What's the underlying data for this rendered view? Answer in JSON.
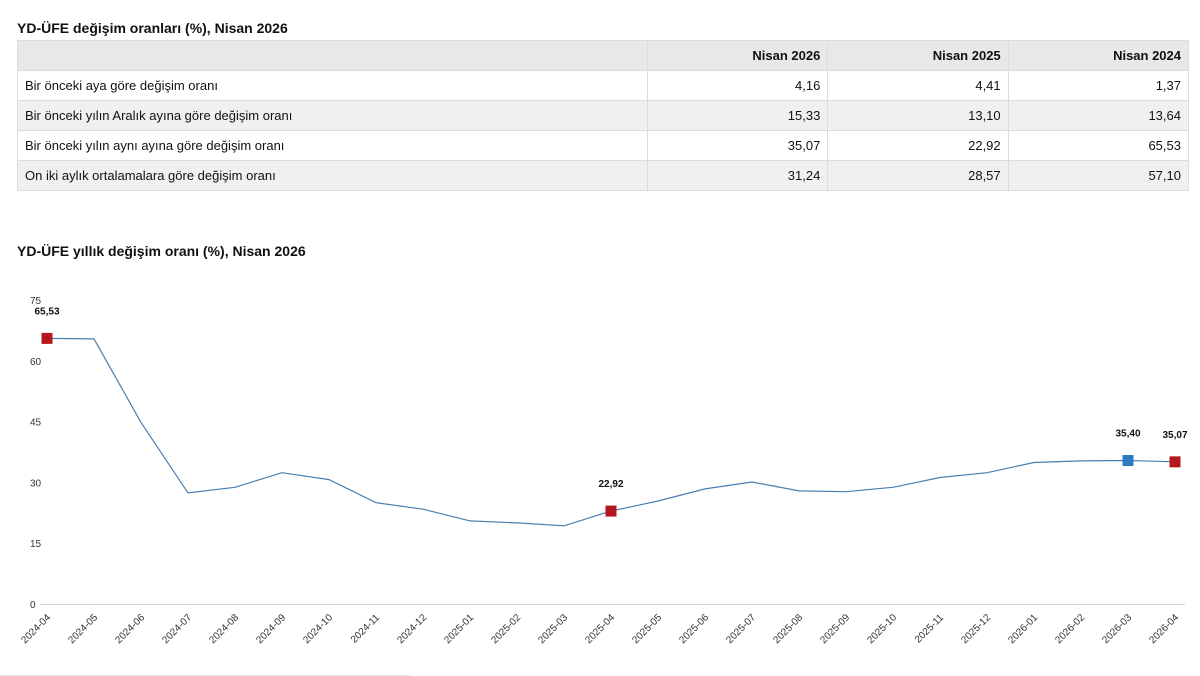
{
  "table": {
    "title": "YD-ÜFE değişim oranları (%), Nisan 2026",
    "columns": [
      "",
      "Nisan 2026",
      "Nisan 2025",
      "Nisan 2024"
    ],
    "rows": [
      {
        "label": "Bir önceki aya göre değişim oranı",
        "values": [
          "4,16",
          "4,41",
          "1,37"
        ]
      },
      {
        "label": "Bir önceki yılın Aralık ayına göre değişim oranı",
        "values": [
          "15,33",
          "13,10",
          "13,64"
        ]
      },
      {
        "label": "Bir önceki yılın aynı ayına göre değişim oranı",
        "values": [
          "35,07",
          "22,92",
          "65,53"
        ]
      },
      {
        "label": "On iki aylık ortalamalara göre değişim oranı",
        "values": [
          "31,24",
          "28,57",
          "57,10"
        ]
      }
    ]
  },
  "chart_data": {
    "type": "line",
    "title": "YD-ÜFE yıllık değişim oranı (%), Nisan 2026",
    "xlabel": "",
    "ylabel": "",
    "ylim": [
      0,
      75
    ],
    "yticks": [
      0,
      15,
      30,
      45,
      60,
      75
    ],
    "grid": false,
    "line_color": "#4a7fb0",
    "categories": [
      "2024-04",
      "2024-05",
      "2024-06",
      "2024-07",
      "2024-08",
      "2024-09",
      "2024-10",
      "2024-11",
      "2024-12",
      "2025-01",
      "2025-02",
      "2025-03",
      "2025-04",
      "2025-05",
      "2025-06",
      "2025-07",
      "2025-08",
      "2025-09",
      "2025-10",
      "2025-11",
      "2025-12",
      "2026-01",
      "2026-02",
      "2026-03",
      "2026-04"
    ],
    "series": [
      {
        "values": [
          65.53,
          65.4,
          44.8,
          27.4,
          28.8,
          32.4,
          30.7,
          25.0,
          23.4,
          20.5,
          20.0,
          19.3,
          22.92,
          25.4,
          28.4,
          30.1,
          27.9,
          27.7,
          28.8,
          31.2,
          32.4,
          34.9,
          35.3,
          35.4,
          35.07
        ]
      }
    ],
    "highlights": [
      {
        "category": "2024-04",
        "value": 65.53,
        "label": "65,53",
        "color": "#b5171f"
      },
      {
        "category": "2025-04",
        "value": 22.92,
        "label": "22,92",
        "color": "#b5171f"
      },
      {
        "category": "2026-03",
        "value": 35.4,
        "label": "35,40",
        "color": "#2e7bbf"
      },
      {
        "category": "2026-04",
        "value": 35.07,
        "label": "35,07",
        "color": "#b5171f"
      }
    ]
  }
}
